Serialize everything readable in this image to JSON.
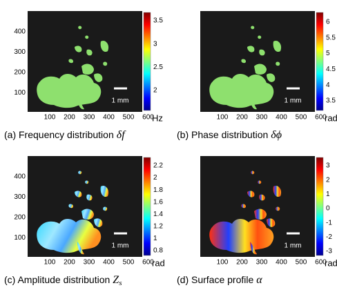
{
  "panels": [
    {
      "caption": "(a) Frequency distribution",
      "symbol": "δf",
      "subscript": null,
      "unit": "Hz",
      "scale_bar": "1 mm",
      "xticks": [
        100,
        200,
        300,
        400,
        500,
        600
      ],
      "yticks": [
        400,
        300,
        200,
        100
      ],
      "colorbar_ticks": [
        3.5,
        3,
        2.5,
        2
      ]
    },
    {
      "caption": "(b) Phase distribution",
      "symbol": "δϕ",
      "subscript": null,
      "unit": "rad",
      "scale_bar": "1 mm",
      "xticks": [
        100,
        200,
        300,
        400,
        500,
        600
      ],
      "yticks": [],
      "colorbar_ticks": [
        6,
        5.5,
        5,
        4.5,
        4,
        3.5
      ]
    },
    {
      "caption": "(c) Amplitude distribution",
      "symbol": "Z",
      "subscript": "s",
      "unit": "rad",
      "scale_bar": "1 mm",
      "xticks": [
        100,
        200,
        300,
        400,
        500,
        600
      ],
      "yticks": [
        400,
        300,
        200,
        100
      ],
      "colorbar_ticks": [
        2.2,
        2,
        1.8,
        1.6,
        1.4,
        1.2,
        1,
        0.8
      ]
    },
    {
      "caption": "(d) Surface profile",
      "symbol": "α",
      "subscript": null,
      "unit": "rad",
      "scale_bar": "1 mm",
      "xticks": [
        100,
        200,
        300,
        400,
        500,
        600
      ],
      "yticks": [],
      "colorbar_ticks": [
        3,
        2,
        1,
        0,
        -1,
        -2,
        -3
      ]
    }
  ]
}
